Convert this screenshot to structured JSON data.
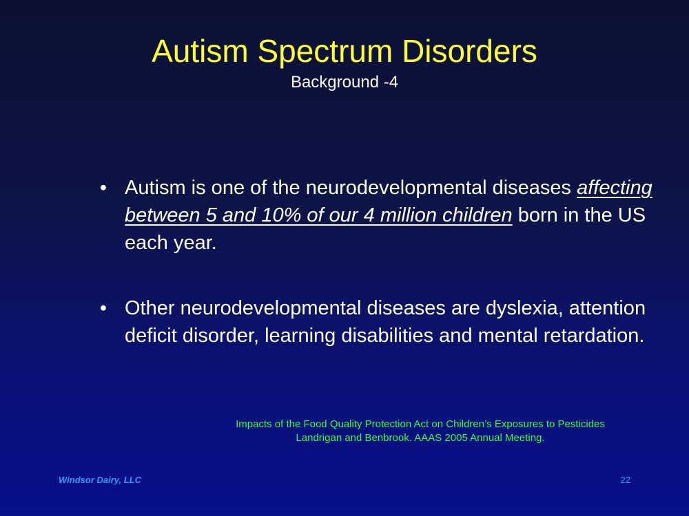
{
  "slide": {
    "title": "Autism Spectrum Disorders",
    "subtitle": "Background -4",
    "bullet_symbol": "•",
    "bullets": [
      {
        "before": "Autism is one of the neurodevelopmental diseases ",
        "emphasis": "affecting between 5 and 10% of our 4 million children",
        "after": " born in the US each year."
      },
      {
        "before": "Other neurodevelopmental diseases are dyslexia, attention deficit disorder, learning disabilities and mental retardation.",
        "emphasis": "",
        "after": ""
      }
    ],
    "citation": {
      "line1": "Impacts of the Food Quality Protection Act on Children’s Exposures to Pesticides",
      "line2": "Landrigan and Benbrook. AAAS 2005 Annual Meeting."
    },
    "footer": {
      "company": "Windsor Dairy, LLC",
      "page_number": "22"
    },
    "colors": {
      "title": "#ffff33",
      "body_text": "#ffffff",
      "citation": "#33ff33",
      "footer": "#3399ff",
      "background_top": "#0c1133",
      "background_bottom": "#08108a"
    }
  }
}
